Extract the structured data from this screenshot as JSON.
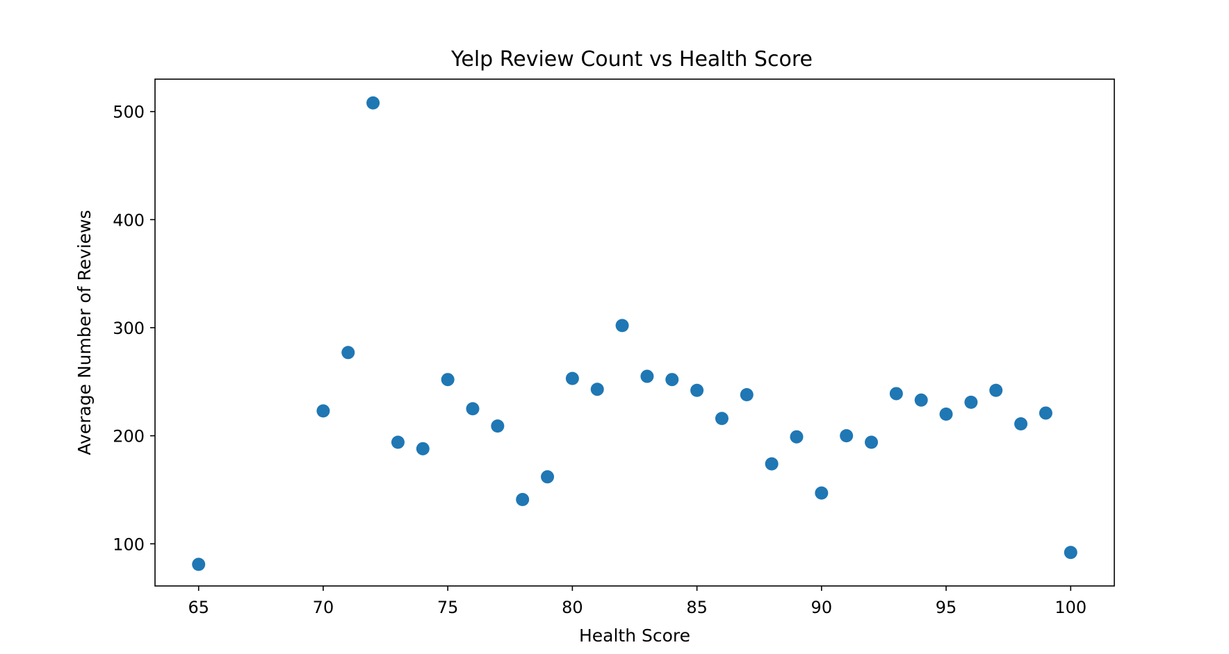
{
  "chart_data": {
    "type": "scatter",
    "title": "Yelp Review Count vs Health Score",
    "xlabel": "Health Score",
    "ylabel": "Average Number of Reviews",
    "xlim": [
      63.25,
      101.75
    ],
    "ylim": [
      61,
      530
    ],
    "xticks": [
      65,
      70,
      75,
      80,
      85,
      90,
      95,
      100
    ],
    "yticks": [
      100,
      200,
      300,
      400,
      500
    ],
    "grid": false,
    "color": "#1f77b4",
    "points": [
      {
        "x": 65,
        "y": 81
      },
      {
        "x": 70,
        "y": 223
      },
      {
        "x": 71,
        "y": 277
      },
      {
        "x": 72,
        "y": 508
      },
      {
        "x": 73,
        "y": 194
      },
      {
        "x": 74,
        "y": 188
      },
      {
        "x": 75,
        "y": 252
      },
      {
        "x": 76,
        "y": 225
      },
      {
        "x": 77,
        "y": 209
      },
      {
        "x": 78,
        "y": 141
      },
      {
        "x": 79,
        "y": 162
      },
      {
        "x": 80,
        "y": 253
      },
      {
        "x": 81,
        "y": 243
      },
      {
        "x": 82,
        "y": 302
      },
      {
        "x": 83,
        "y": 255
      },
      {
        "x": 84,
        "y": 252
      },
      {
        "x": 85,
        "y": 242
      },
      {
        "x": 86,
        "y": 216
      },
      {
        "x": 87,
        "y": 238
      },
      {
        "x": 88,
        "y": 174
      },
      {
        "x": 89,
        "y": 199
      },
      {
        "x": 90,
        "y": 147
      },
      {
        "x": 91,
        "y": 200
      },
      {
        "x": 92,
        "y": 194
      },
      {
        "x": 93,
        "y": 239
      },
      {
        "x": 94,
        "y": 233
      },
      {
        "x": 95,
        "y": 220
      },
      {
        "x": 96,
        "y": 231
      },
      {
        "x": 97,
        "y": 242
      },
      {
        "x": 98,
        "y": 211
      },
      {
        "x": 99,
        "y": 221
      },
      {
        "x": 100,
        "y": 92
      }
    ]
  }
}
